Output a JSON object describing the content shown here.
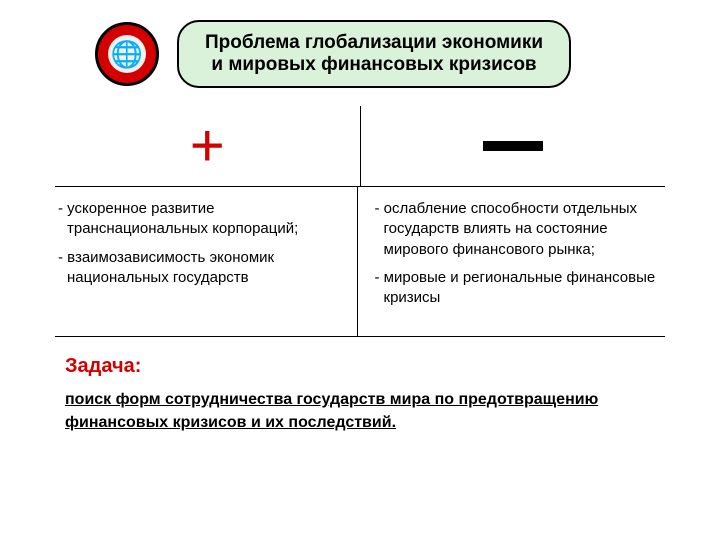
{
  "colors": {
    "pill_bg": "#d9f2d9",
    "accent_red": "#d40000",
    "border": "#000000",
    "background": "#ffffff"
  },
  "title": {
    "line1": "Проблема глобализации экономики",
    "line2": "и мировых финансовых кризисов"
  },
  "globe_glyph": "🌐",
  "signs": {
    "plus": "+"
  },
  "positives": [
    "- ускоренное развитие транснациональных корпораций;",
    "- взаимозависимость экономик национальных государств"
  ],
  "negatives": [
    "- ослабление способности отдельных государств влиять на состояние мирового финансового рынка;",
    "- мировые и региональные финансовые кризисы"
  ],
  "task": {
    "label": "Задача:",
    "text": "поиск форм сотрудничества государств мира по предотвращению финансовых кризисов и их последствий."
  },
  "typography": {
    "title_fontsize": 19,
    "body_fontsize": 15,
    "task_label_fontsize": 20,
    "task_text_fontsize": 16
  }
}
